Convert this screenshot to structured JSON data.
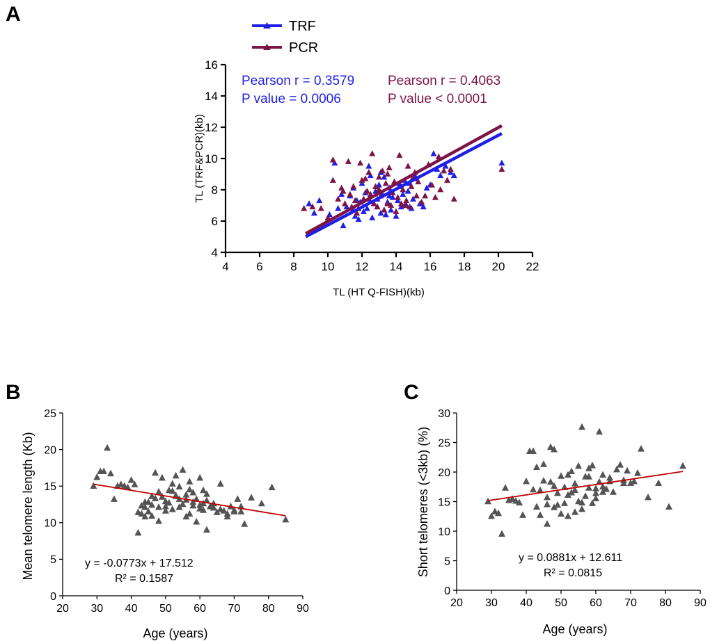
{
  "colors": {
    "trf": "#1f1fe6",
    "pcr": "#7d1446",
    "points": "#545454",
    "fit": "#c00000",
    "axis": "#000000"
  },
  "panel_labels": [
    "A",
    "B",
    "C"
  ],
  "chart_data": [
    {
      "panel": "A",
      "type": "scatter",
      "xlabel": "TL (HT Q-FISH)(kb)",
      "ylabel": "TL (TRF&PCR)(kb)",
      "xlim": [
        4,
        22
      ],
      "ylim": [
        4,
        16
      ],
      "xticks": [
        4,
        6,
        8,
        10,
        12,
        14,
        16,
        18,
        20,
        22
      ],
      "yticks": [
        4,
        6,
        8,
        10,
        12,
        14,
        16
      ],
      "legend": {
        "position": "top-left, above plot"
      },
      "annotations": {
        "trf_r": "Pearson r = 0.3579",
        "trf_p": "P value = 0.0006",
        "pcr_r": "Pearson r = 0.4063",
        "pcr_p": "P value < 0.0001"
      },
      "series": [
        {
          "name": "TRF",
          "color": "#1f1fe6",
          "marker": "triangle",
          "fit": [
            [
              8.7,
              5.0
            ],
            [
              20.2,
              11.6
            ]
          ],
          "x": [
            8.9,
            9.2,
            9.5,
            10.1,
            10.4,
            10.6,
            10.9,
            11.1,
            11.3,
            11.5,
            11.6,
            11.8,
            11.9,
            12.0,
            12.1,
            12.2,
            12.3,
            12.4,
            12.5,
            12.6,
            12.7,
            12.8,
            12.9,
            13.0,
            13.1,
            13.2,
            13.3,
            13.4,
            13.5,
            13.6,
            13.7,
            13.8,
            13.9,
            14.0,
            14.1,
            14.2,
            14.3,
            14.4,
            14.5,
            14.6,
            14.7,
            14.8,
            14.9,
            15.0,
            15.2,
            15.4,
            15.6,
            15.8,
            16.0,
            16.2,
            16.4,
            16.6,
            16.9,
            17.2,
            17.4,
            20.2,
            11.7,
            12.4,
            13.1,
            13.6,
            14.2,
            10.8,
            15.1,
            12.9,
            11.4
          ],
          "y": [
            7.1,
            6.5,
            7.3,
            6.4,
            9.7,
            6.8,
            5.7,
            6.9,
            7.6,
            8.1,
            6.3,
            6.1,
            7.2,
            8.4,
            6.6,
            7.8,
            6.8,
            7.4,
            8.9,
            6.2,
            7.1,
            7.9,
            6.9,
            8.3,
            6.5,
            7.7,
            8.8,
            6.4,
            7.2,
            8.1,
            6.7,
            7.5,
            8.5,
            6.3,
            7.3,
            8.2,
            6.9,
            7.7,
            8.6,
            7.0,
            7.9,
            8.4,
            6.8,
            7.4,
            8.7,
            7.1,
            6.9,
            8.1,
            8.3,
            10.3,
            9.3,
            8.9,
            9.5,
            9.1,
            8.9,
            9.7,
            7.3,
            9.5,
            9.1,
            7.6,
            8.4,
            7.7,
            8.9,
            7.4,
            6.8
          ]
        },
        {
          "name": "PCR",
          "color": "#7d1446",
          "marker": "triangle",
          "fit": [
            [
              8.7,
              5.2
            ],
            [
              20.2,
              12.1
            ]
          ],
          "x": [
            8.6,
            9.1,
            9.6,
            10.0,
            10.3,
            10.6,
            10.8,
            11.0,
            11.2,
            11.3,
            11.5,
            11.6,
            11.8,
            11.9,
            12.0,
            12.1,
            12.3,
            12.4,
            12.6,
            12.7,
            12.8,
            12.9,
            13.0,
            13.1,
            13.2,
            13.3,
            13.4,
            13.5,
            13.6,
            13.7,
            13.8,
            13.9,
            14.0,
            14.1,
            14.2,
            14.3,
            14.4,
            14.6,
            14.7,
            14.8,
            14.9,
            15.0,
            15.2,
            15.3,
            15.5,
            15.7,
            15.9,
            16.1,
            16.3,
            16.5,
            16.8,
            17.0,
            17.2,
            17.4,
            20.2,
            10.9,
            11.4,
            12.2,
            12.5,
            13.5,
            14.5,
            15.1,
            16.6,
            13.0,
            11.7,
            10.3
          ],
          "y": [
            6.8,
            6.9,
            6.8,
            6.2,
            9.9,
            7.4,
            8.1,
            7.1,
            9.8,
            7.7,
            8.2,
            7.3,
            6.8,
            9.7,
            8.6,
            7.4,
            7.9,
            9.1,
            10.3,
            7.1,
            8.2,
            6.9,
            8.8,
            7.6,
            9.2,
            6.7,
            8.4,
            7.1,
            9.4,
            7.0,
            7.8,
            8.5,
            6.6,
            7.5,
            10.2,
            7.1,
            8.0,
            7.3,
            9.5,
            6.9,
            8.2,
            8.8,
            7.6,
            8.5,
            7.2,
            7.6,
            9.6,
            8.3,
            7.5,
            10.1,
            9.2,
            8.6,
            9.3,
            7.4,
            9.3,
            7.9,
            6.9,
            8.7,
            7.7,
            9.0,
            7.0,
            9.1,
            8.0,
            8.0,
            6.5,
            8.6
          ]
        }
      ]
    },
    {
      "panel": "B",
      "type": "scatter",
      "xlabel": "Age (years)",
      "ylabel": "Mean telomere length (Kb)",
      "xlim": [
        20,
        90
      ],
      "ylim": [
        0,
        25
      ],
      "xticks": [
        20,
        30,
        40,
        50,
        60,
        70,
        80,
        90
      ],
      "yticks": [
        0,
        5,
        10,
        15,
        20,
        25
      ],
      "equation": "y = -0.0773x + 17.512",
      "r2": "R² = 0.1587",
      "fit": {
        "slope": -0.0773,
        "intercept": 17.512,
        "x_range": [
          29,
          85
        ]
      },
      "points": {
        "x": [
          29,
          30,
          31,
          32,
          33,
          34,
          35,
          36,
          37,
          38,
          39,
          40,
          41,
          42,
          43,
          43,
          44,
          44,
          45,
          45,
          46,
          46,
          47,
          47,
          48,
          48,
          49,
          49,
          50,
          50,
          51,
          51,
          52,
          52,
          53,
          53,
          54,
          54,
          55,
          55,
          56,
          56,
          57,
          57,
          58,
          58,
          59,
          59,
          60,
          60,
          61,
          61,
          62,
          62,
          63,
          64,
          65,
          66,
          67,
          68,
          69,
          70,
          71,
          72,
          73,
          75,
          78,
          81,
          85,
          42,
          46,
          50,
          54,
          58,
          62,
          66,
          70,
          44,
          48,
          52,
          56,
          60,
          64,
          68,
          72,
          53,
          57,
          61
        ],
        "y": [
          15,
          16.2,
          17,
          17,
          20.2,
          16.7,
          13.2,
          15,
          15.2,
          15,
          14.8,
          15.8,
          15.2,
          8.6,
          11.2,
          12.3,
          10.8,
          12.1,
          11.5,
          12.8,
          10.9,
          12.4,
          13.3,
          16.8,
          14.2,
          10.2,
          13.5,
          16.1,
          12.9,
          11.6,
          14.4,
          12.7,
          15.3,
          11.8,
          13.6,
          16.4,
          12.1,
          14.9,
          12.5,
          17.2,
          13.8,
          10.8,
          15.6,
          11.2,
          14.1,
          12.8,
          10.1,
          13.2,
          16.1,
          12.4,
          14.4,
          11.7,
          13.0,
          9.0,
          12.2,
          12.0,
          11.4,
          15.3,
          11.6,
          10.8,
          12.2,
          11.7,
          13.2,
          11.5,
          9.8,
          13.4,
          12.6,
          14.8,
          10.4,
          11.4,
          13.6,
          12.2,
          13.2,
          12.3,
          13.9,
          11.8,
          11.5,
          12.8,
          12.1,
          14.3,
          13.1,
          11.9,
          12.6,
          11.2,
          12.2,
          13.7,
          14.5,
          12.6
        ]
      }
    },
    {
      "panel": "C",
      "type": "scatter",
      "xlabel": "Age (years)",
      "ylabel": "Short telomeres (<3kb) (%)",
      "xlim": [
        20,
        90
      ],
      "ylim": [
        0,
        30
      ],
      "xticks": [
        20,
        30,
        40,
        50,
        60,
        70,
        80,
        90
      ],
      "yticks": [
        0,
        5,
        10,
        15,
        20,
        25,
        30
      ],
      "equation": "y = 0.0881x + 12.611",
      "r2": "R² = 0.0815",
      "fit": {
        "slope": 0.0881,
        "intercept": 12.611,
        "x_range": [
          29,
          85
        ]
      },
      "points": {
        "x": [
          29,
          30,
          31,
          32,
          33,
          34,
          35,
          36,
          37,
          38,
          39,
          40,
          41,
          42,
          42,
          43,
          43,
          44,
          44,
          45,
          45,
          46,
          46,
          47,
          47,
          48,
          48,
          49,
          49,
          50,
          50,
          51,
          51,
          52,
          52,
          53,
          53,
          54,
          54,
          55,
          55,
          56,
          56,
          57,
          57,
          58,
          58,
          59,
          59,
          60,
          60,
          61,
          61,
          62,
          62,
          63,
          64,
          65,
          66,
          67,
          68,
          69,
          70,
          71,
          72,
          73,
          75,
          78,
          81,
          85,
          46,
          52,
          56,
          60,
          64,
          68,
          48,
          54,
          58,
          62
        ],
        "y": [
          15,
          12.5,
          13.3,
          13,
          9.5,
          17.3,
          15.2,
          15.4,
          15.1,
          14.8,
          12.7,
          18.4,
          23.5,
          23.5,
          17,
          20.8,
          14.1,
          16.9,
          12.7,
          21.3,
          18.5,
          15.7,
          11.2,
          24.2,
          18.3,
          14,
          23.8,
          16.4,
          14.4,
          19.3,
          12.9,
          17.4,
          14.7,
          19.5,
          12.5,
          16.5,
          20.1,
          13.2,
          18,
          15,
          21,
          27.6,
          13.7,
          19.2,
          15.9,
          20.6,
          17.3,
          14.7,
          21.1,
          17.2,
          15.5,
          26.8,
          18.3,
          16.6,
          19.5,
          17.1,
          18.4,
          16.6,
          20.4,
          21.2,
          18.1,
          20.2,
          18.1,
          18.4,
          19.8,
          23.9,
          15.7,
          18.1,
          14.1,
          21,
          14.5,
          16.1,
          14.8,
          16.4,
          19,
          18.6,
          17.6,
          16.9,
          19.2,
          17.5
        ]
      }
    }
  ]
}
